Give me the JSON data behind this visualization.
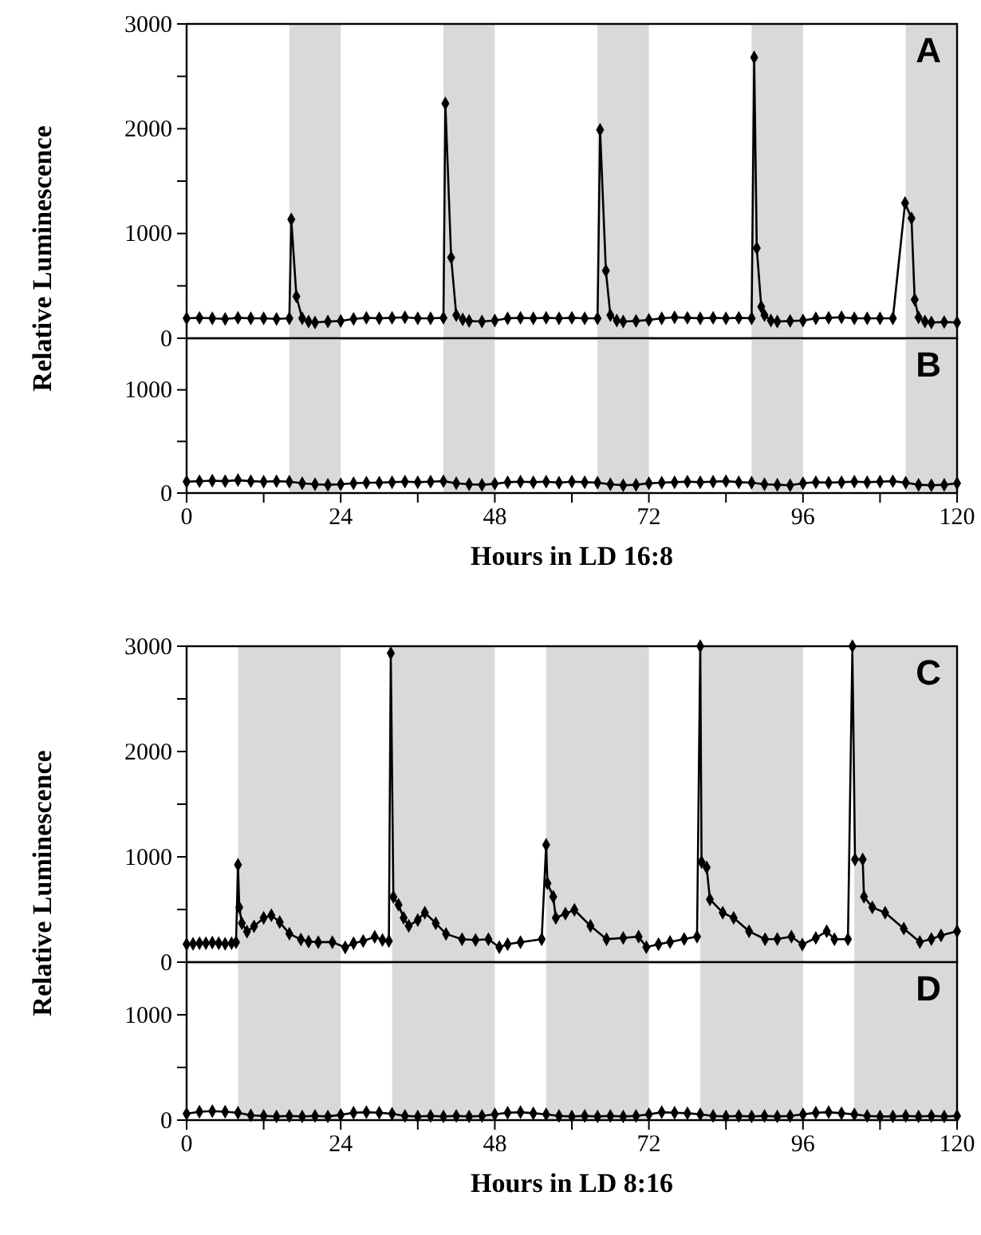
{
  "chart_data": [
    {
      "type": "line",
      "ylabel": "Relative Luminescence",
      "annotations": [
        "A"
      ],
      "xlim": [
        0,
        120
      ],
      "ylim": [
        0,
        3000
      ],
      "yticks": [
        0,
        {
          "value": 500,
          "label": null
        },
        1000,
        {
          "value": 1500,
          "label": null
        },
        2000,
        {
          "value": 2500,
          "label": null
        },
        3000
      ],
      "tick_labels": "y",
      "marker": "diamond",
      "line_style": "solid",
      "bands": [
        {
          "axis": "x",
          "from": 16,
          "to": 24,
          "color": "#d9d9d9"
        },
        {
          "axis": "x",
          "from": 40,
          "to": 48,
          "color": "#d9d9d9"
        },
        {
          "axis": "x",
          "from": 64,
          "to": 72,
          "color": "#d9d9d9"
        },
        {
          "axis": "x",
          "from": 88,
          "to": 96,
          "color": "#d9d9d9"
        },
        {
          "axis": "x",
          "from": 112,
          "to": 120,
          "color": "#d9d9d9"
        }
      ],
      "series": [
        {
          "color": "#000000",
          "x": [
            0,
            2,
            4,
            6,
            8,
            10,
            12,
            14,
            16,
            16.3,
            17.1,
            18,
            19,
            20,
            22,
            24,
            26,
            28,
            30,
            32,
            34,
            36,
            38,
            40,
            40.3,
            41.2,
            42,
            43,
            44,
            46,
            48,
            50,
            52,
            54,
            56,
            58,
            60,
            62,
            64,
            64.4,
            65.3,
            66,
            67,
            68,
            70,
            72,
            74,
            76,
            78,
            80,
            82,
            84,
            86,
            88,
            88.4,
            88.8,
            89.5,
            90,
            91,
            92,
            94,
            96,
            98,
            100,
            102,
            104,
            106,
            108,
            110,
            111.9,
            112.9,
            113.4,
            114,
            115,
            116,
            118,
            120
          ],
          "values": [
            190,
            195,
            190,
            185,
            195,
            190,
            190,
            185,
            190,
            1135,
            400,
            190,
            160,
            150,
            160,
            165,
            185,
            195,
            190,
            195,
            200,
            190,
            190,
            195,
            2240,
            770,
            220,
            180,
            165,
            160,
            170,
            190,
            195,
            190,
            195,
            190,
            195,
            190,
            190,
            1990,
            645,
            220,
            170,
            160,
            165,
            175,
            190,
            200,
            195,
            190,
            195,
            190,
            195,
            190,
            2680,
            860,
            300,
            220,
            170,
            160,
            165,
            170,
            190,
            195,
            200,
            190,
            190,
            190,
            190,
            1290,
            1145,
            370,
            200,
            160,
            150,
            155,
            150
          ]
        }
      ]
    },
    {
      "type": "line",
      "xlabel": "Hours in LD 16:8",
      "annotations": [
        "B"
      ],
      "xlim": [
        0,
        120
      ],
      "ylim": [
        0,
        1500
      ],
      "xticks": [
        0,
        {
          "value": 12,
          "label": null
        },
        24,
        {
          "value": 36,
          "label": null
        },
        48,
        {
          "value": 60,
          "label": null
        },
        72,
        {
          "value": 84,
          "label": null
        },
        96,
        {
          "value": 108,
          "label": null
        },
        120
      ],
      "yticks": [
        0,
        {
          "value": 500,
          "label": null
        },
        1000
      ],
      "marker": "diamond",
      "line_style": "solid",
      "bands": [
        {
          "axis": "x",
          "from": 16,
          "to": 24,
          "color": "#d9d9d9"
        },
        {
          "axis": "x",
          "from": 40,
          "to": 48,
          "color": "#d9d9d9"
        },
        {
          "axis": "x",
          "from": 64,
          "to": 72,
          "color": "#d9d9d9"
        },
        {
          "axis": "x",
          "from": 88,
          "to": 96,
          "color": "#d9d9d9"
        },
        {
          "axis": "x",
          "from": 112,
          "to": 120,
          "color": "#d9d9d9"
        }
      ],
      "series": [
        {
          "color": "#000000",
          "x": [
            0,
            2,
            4,
            6,
            8,
            10,
            12,
            14,
            16,
            18,
            20,
            22,
            24,
            26,
            28,
            30,
            32,
            34,
            36,
            38,
            40,
            42,
            44,
            46,
            48,
            50,
            52,
            54,
            56,
            58,
            60,
            62,
            64,
            66,
            68,
            70,
            72,
            74,
            76,
            78,
            80,
            82,
            84,
            86,
            88,
            90,
            92,
            94,
            96,
            98,
            100,
            102,
            104,
            106,
            108,
            110,
            112,
            114,
            116,
            118,
            120
          ],
          "values": [
            110,
            115,
            120,
            115,
            125,
            115,
            110,
            115,
            110,
            95,
            85,
            80,
            85,
            95,
            100,
            100,
            105,
            110,
            105,
            110,
            115,
            95,
            85,
            80,
            90,
            105,
            110,
            105,
            110,
            100,
            110,
            105,
            100,
            85,
            75,
            80,
            95,
            100,
            105,
            110,
            105,
            110,
            115,
            105,
            100,
            85,
            80,
            75,
            95,
            105,
            100,
            105,
            110,
            105,
            110,
            115,
            100,
            80,
            75,
            80,
            95
          ]
        }
      ]
    },
    {
      "type": "line",
      "ylabel": "Relative Luminescence",
      "annotations": [
        "C"
      ],
      "xlim": [
        0,
        120
      ],
      "ylim": [
        0,
        3000
      ],
      "yticks": [
        0,
        {
          "value": 500,
          "label": null
        },
        1000,
        {
          "value": 1500,
          "label": null
        },
        2000,
        {
          "value": 2500,
          "label": null
        },
        3000
      ],
      "tick_labels": "y",
      "marker": "diamond",
      "line_style": "solid",
      "bands": [
        {
          "axis": "x",
          "from": 8,
          "to": 24,
          "color": "#d9d9d9"
        },
        {
          "axis": "x",
          "from": 32,
          "to": 48,
          "color": "#d9d9d9"
        },
        {
          "axis": "x",
          "from": 56,
          "to": 72,
          "color": "#d9d9d9"
        },
        {
          "axis": "x",
          "from": 80,
          "to": 96,
          "color": "#d9d9d9"
        },
        {
          "axis": "x",
          "from": 104,
          "to": 120,
          "color": "#d9d9d9"
        }
      ],
      "series": [
        {
          "color": "#000000",
          "x": [
            0,
            1,
            2,
            3,
            4,
            5,
            6,
            7,
            7.7,
            8.0,
            8.2,
            8.6,
            9.4,
            10.5,
            12,
            13.2,
            14.5,
            16,
            17.8,
            19,
            20.5,
            22.7,
            24.7,
            26,
            27.5,
            29.3,
            30.5,
            31.5,
            31.8,
            32.2,
            33,
            33.8,
            34.6,
            36,
            37.1,
            38.8,
            40.4,
            42.9,
            45,
            47,
            48.7,
            50,
            52,
            55.3,
            56.0,
            56.2,
            57.1,
            57.5,
            59,
            60.4,
            62.9,
            65.4,
            68,
            70.4,
            71.6,
            73.5,
            75.3,
            77.5,
            79.5,
            80.0,
            80.2,
            81,
            81.5,
            83.5,
            85.2,
            87.6,
            90.1,
            92,
            94.2,
            95.9,
            98,
            99.7,
            100.9,
            103,
            103.7,
            104.1,
            105.3,
            105.5,
            106.8,
            108.8,
            111.7,
            114.2,
            116,
            117.5,
            120
          ],
          "values": [
            170,
            175,
            180,
            180,
            185,
            180,
            175,
            180,
            190,
            925,
            520,
            370,
            290,
            340,
            420,
            445,
            380,
            270,
            215,
            195,
            190,
            190,
            140,
            180,
            200,
            240,
            210,
            200,
            2934,
            620,
            546,
            420,
            344,
            400,
            470,
            370,
            268,
            218,
            210,
            218,
            142,
            170,
            190,
            218,
            1113,
            749,
            622,
            420,
            460,
            496,
            344,
            218,
            230,
            243,
            142,
            170,
            192,
            220,
            243,
            3000,
            951,
            900,
            597,
            470,
            420,
            293,
            218,
            220,
            243,
            167,
            230,
            293,
            218,
            218,
            3000,
            976,
            976,
            622,
            520,
            470,
            319,
            192,
            220,
            253,
            293
          ]
        }
      ]
    },
    {
      "type": "line",
      "xlabel": "Hours in LD 8:16",
      "annotations": [
        "D"
      ],
      "xlim": [
        0,
        120
      ],
      "ylim": [
        0,
        1500
      ],
      "xticks": [
        0,
        {
          "value": 12,
          "label": null
        },
        24,
        {
          "value": 36,
          "label": null
        },
        48,
        {
          "value": 60,
          "label": null
        },
        72,
        {
          "value": 84,
          "label": null
        },
        96,
        {
          "value": 108,
          "label": null
        },
        120
      ],
      "yticks": [
        0,
        {
          "value": 500,
          "label": null
        },
        1000
      ],
      "marker": "diamond",
      "line_style": "solid",
      "bands": [
        {
          "axis": "x",
          "from": 8,
          "to": 24,
          "color": "#d9d9d9"
        },
        {
          "axis": "x",
          "from": 32,
          "to": 48,
          "color": "#d9d9d9"
        },
        {
          "axis": "x",
          "from": 56,
          "to": 72,
          "color": "#d9d9d9"
        },
        {
          "axis": "x",
          "from": 80,
          "to": 96,
          "color": "#d9d9d9"
        },
        {
          "axis": "x",
          "from": 104,
          "to": 120,
          "color": "#d9d9d9"
        }
      ],
      "series": [
        {
          "color": "#000000",
          "x": [
            0,
            2,
            4,
            6,
            8,
            10,
            12,
            14,
            16,
            18,
            20,
            22,
            24,
            26,
            28,
            30,
            32,
            34,
            36,
            38,
            40,
            42,
            44,
            46,
            48,
            50,
            52,
            54,
            56,
            58,
            60,
            62,
            64,
            66,
            68,
            70,
            72,
            74,
            76,
            78,
            80,
            82,
            84,
            86,
            88,
            90,
            92,
            94,
            96,
            98,
            100,
            102,
            104,
            106,
            108,
            110,
            112,
            114,
            116,
            118,
            120
          ],
          "values": [
            60,
            80,
            85,
            80,
            70,
            45,
            40,
            35,
            40,
            35,
            40,
            35,
            50,
            70,
            75,
            70,
            60,
            40,
            35,
            40,
            35,
            40,
            35,
            40,
            55,
            70,
            75,
            65,
            55,
            40,
            35,
            40,
            35,
            40,
            35,
            40,
            55,
            75,
            70,
            65,
            55,
            40,
            35,
            40,
            35,
            40,
            35,
            40,
            55,
            70,
            75,
            65,
            55,
            40,
            35,
            35,
            40,
            35,
            40,
            35,
            40
          ]
        }
      ]
    }
  ]
}
